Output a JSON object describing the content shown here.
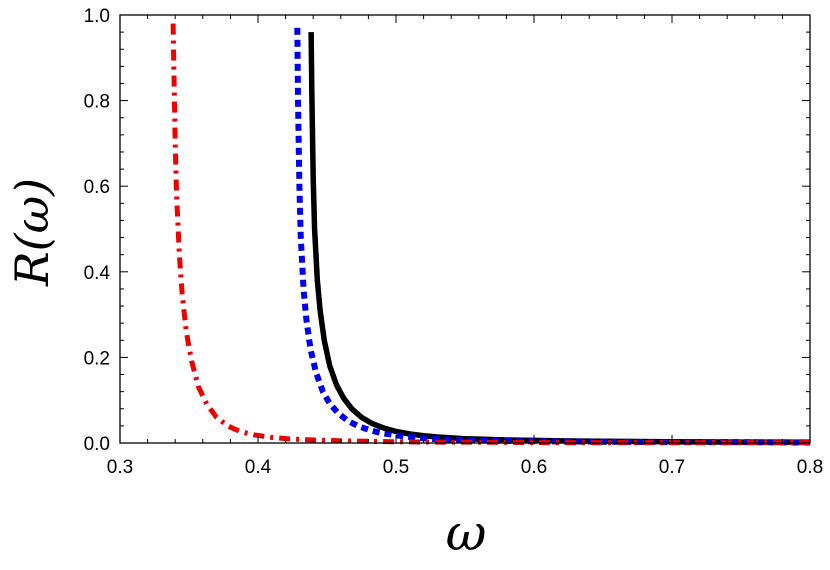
{
  "chart_data": {
    "type": "line",
    "title": "",
    "xlabel": "ω",
    "ylabel": "R(ω)",
    "xlim": [
      0.3,
      0.8
    ],
    "ylim": [
      0.0,
      1.0
    ],
    "xticks": [
      0.3,
      0.4,
      0.5,
      0.6,
      0.7,
      0.8
    ],
    "yticks": [
      0.0,
      0.2,
      0.4,
      0.6,
      0.8,
      1.0
    ],
    "xtick_labels": [
      "0.3",
      "0.4",
      "0.5",
      "0.6",
      "0.7",
      "0.8"
    ],
    "ytick_labels": [
      "0.0",
      "0.2",
      "0.4",
      "0.6",
      "0.8",
      "1.0"
    ],
    "grid": false,
    "series": [
      {
        "color": "#000000",
        "style": "solid",
        "x": [
          0.4385,
          0.439,
          0.44,
          0.441,
          0.443,
          0.445,
          0.448,
          0.452,
          0.457,
          0.462,
          0.468,
          0.475,
          0.483,
          0.492,
          0.5,
          0.51,
          0.52,
          0.53,
          0.54,
          0.55,
          0.56,
          0.58,
          0.6,
          0.62,
          0.65,
          0.7,
          0.75,
          0.8
        ],
        "y": [
          0.96,
          0.82,
          0.62,
          0.5,
          0.38,
          0.31,
          0.24,
          0.18,
          0.135,
          0.105,
          0.08,
          0.06,
          0.045,
          0.034,
          0.027,
          0.021,
          0.017,
          0.014,
          0.012,
          0.01,
          0.009,
          0.007,
          0.006,
          0.005,
          0.004,
          0.003,
          0.002,
          0.002
        ]
      },
      {
        "color": "#0000ee",
        "style": "dotted",
        "x": [
          0.4285,
          0.429,
          0.43,
          0.431,
          0.433,
          0.435,
          0.438,
          0.442,
          0.447,
          0.452,
          0.458,
          0.465,
          0.473,
          0.482,
          0.49,
          0.5,
          0.51,
          0.52,
          0.53,
          0.54,
          0.55,
          0.57,
          0.6,
          0.65,
          0.7,
          0.75,
          0.8
        ],
        "y": [
          0.97,
          0.8,
          0.6,
          0.48,
          0.36,
          0.29,
          0.22,
          0.165,
          0.12,
          0.092,
          0.07,
          0.052,
          0.039,
          0.029,
          0.023,
          0.018,
          0.014,
          0.011,
          0.009,
          0.008,
          0.007,
          0.005,
          0.004,
          0.003,
          0.002,
          0.002,
          0.001
        ]
      },
      {
        "color": "#ee0000",
        "style": "dashdot",
        "x": [
          0.3385,
          0.339,
          0.34,
          0.341,
          0.343,
          0.345,
          0.348,
          0.352,
          0.357,
          0.363,
          0.37,
          0.378,
          0.387,
          0.397,
          0.41,
          0.425,
          0.44,
          0.46,
          0.48,
          0.5,
          0.53,
          0.56,
          0.6,
          0.65,
          0.7,
          0.75,
          0.8
        ],
        "y": [
          0.98,
          0.88,
          0.7,
          0.58,
          0.44,
          0.35,
          0.26,
          0.19,
          0.13,
          0.09,
          0.06,
          0.04,
          0.027,
          0.019,
          0.013,
          0.009,
          0.007,
          0.005,
          0.004,
          0.003,
          0.002,
          0.002,
          0.001,
          0.001,
          0.001,
          0.001,
          0.001
        ]
      }
    ]
  }
}
